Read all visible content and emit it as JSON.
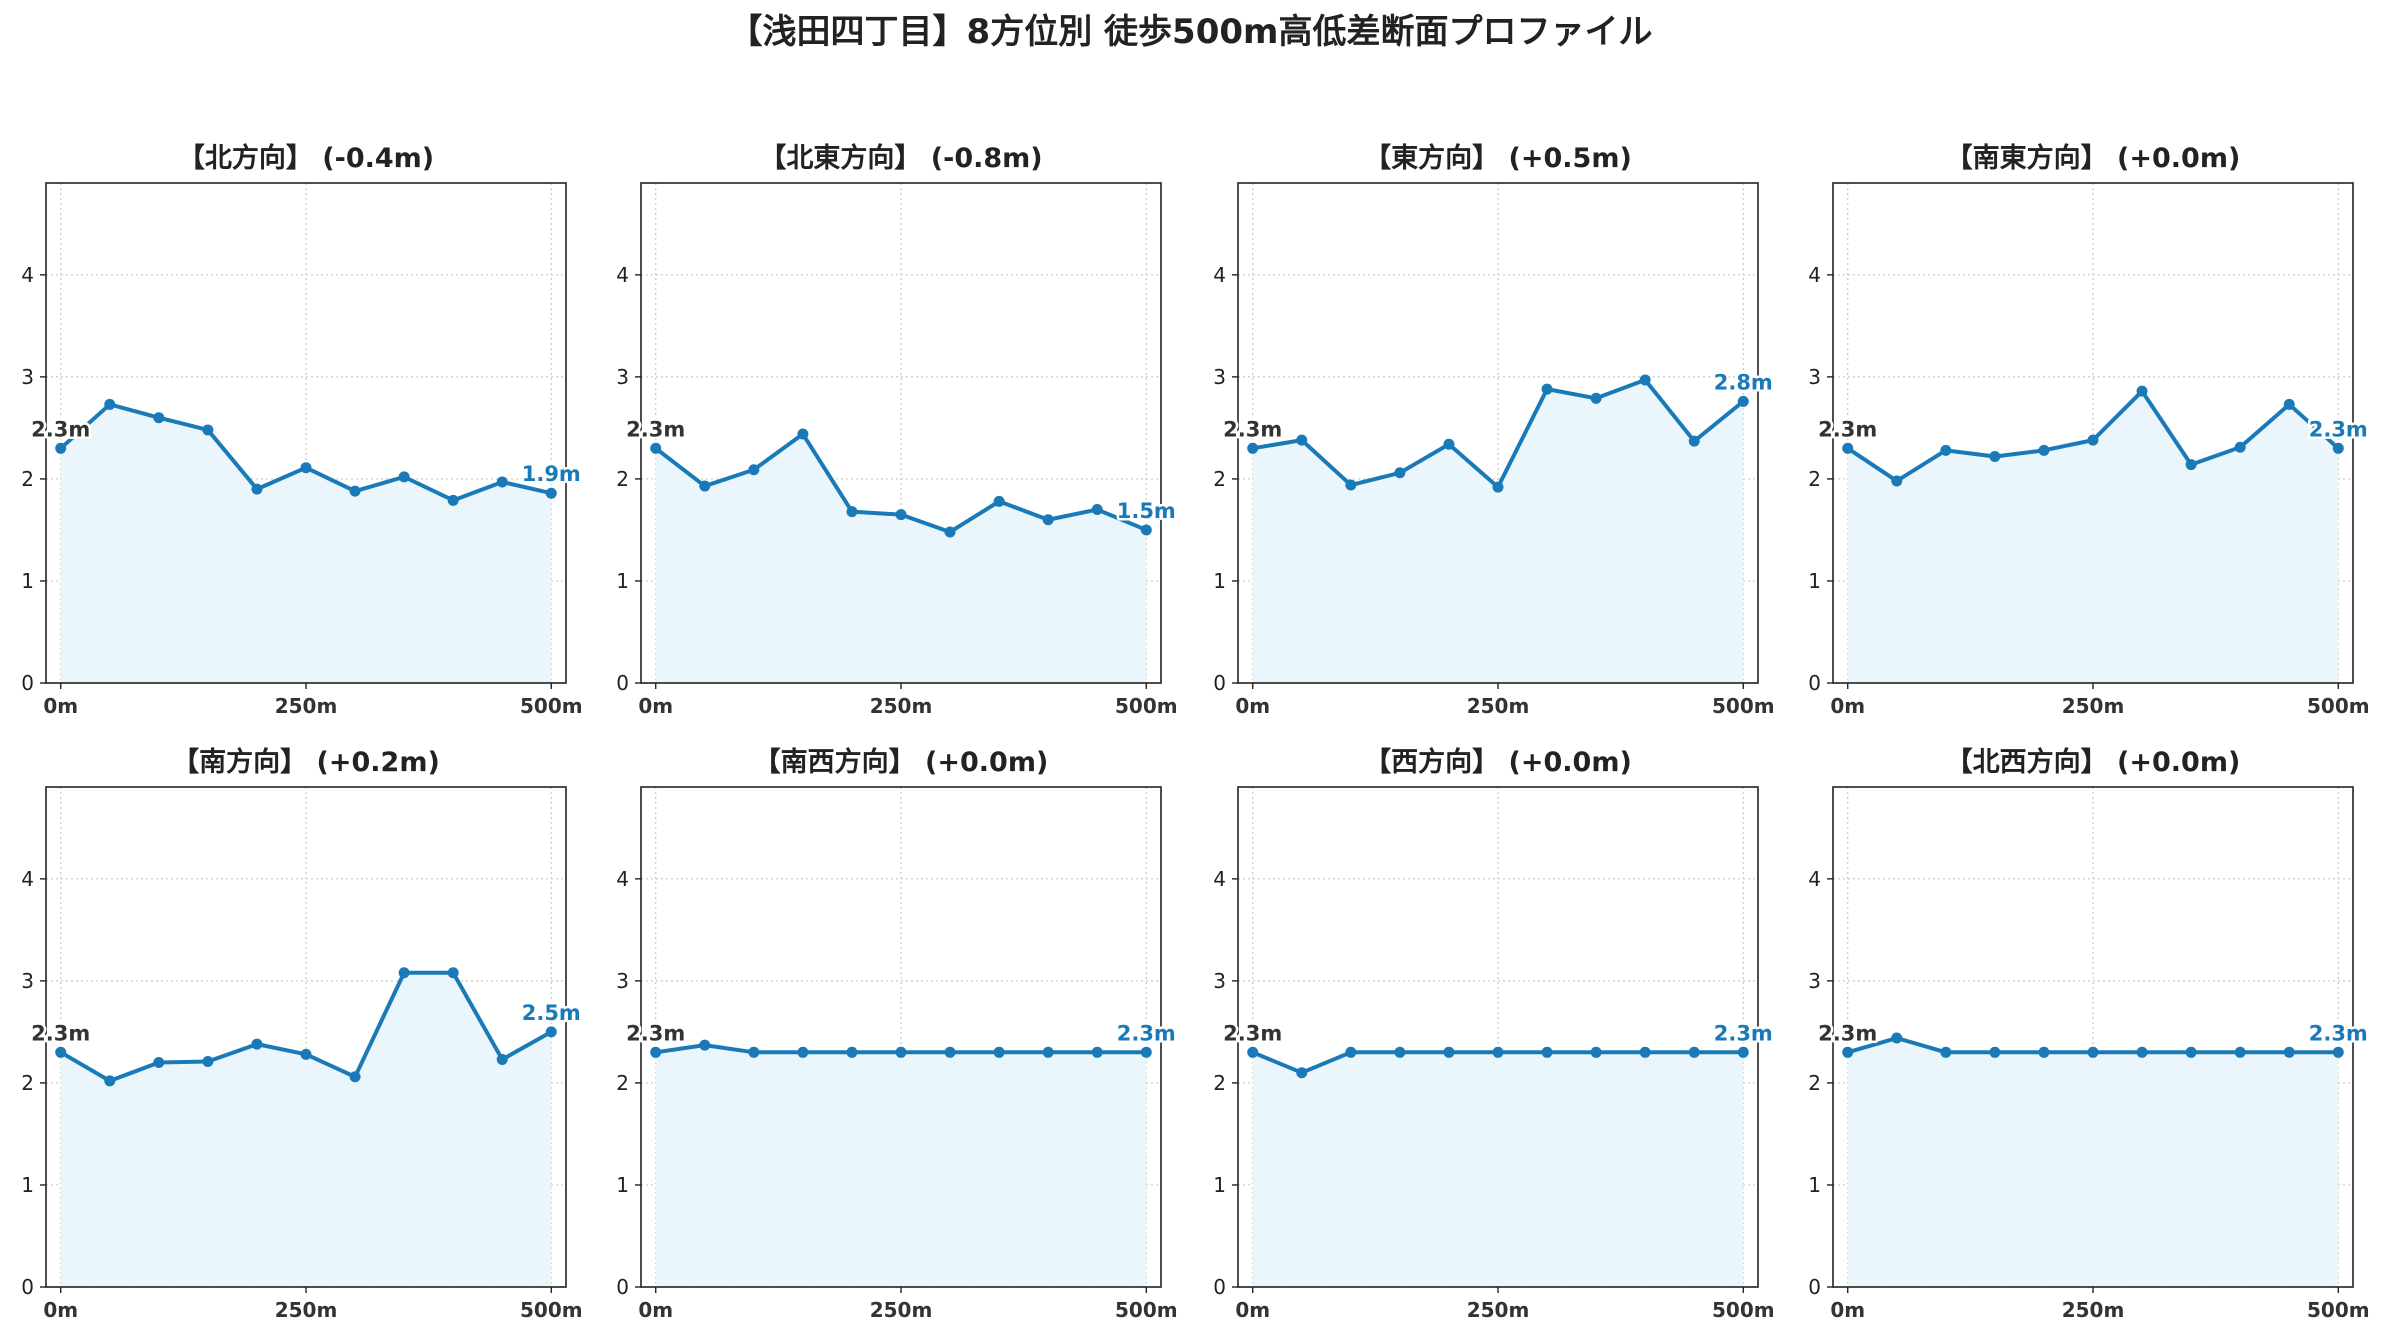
{
  "title": "【浅田四丁目】8方位別 徒歩500m高低差断面プロファイル",
  "colors": {
    "line": "#1a7ab8",
    "fill": "#eaf6fb",
    "start_label": "#333333",
    "end_label": "#1a7ab8",
    "grid": "#c8c8c8"
  },
  "chart_data": [
    {
      "type": "area",
      "title": "【北方向】 (-0.4m)",
      "x": [
        0,
        50,
        100,
        150,
        200,
        250,
        300,
        350,
        400,
        450,
        500
      ],
      "values": [
        2.3,
        2.73,
        2.6,
        2.48,
        1.9,
        2.11,
        1.88,
        2.02,
        1.79,
        1.97,
        1.86
      ],
      "start_label": "2.3m",
      "end_label": "1.9m",
      "xticks": [
        0,
        250,
        500
      ],
      "xtick_labels": [
        "0m",
        "250m",
        "500m"
      ],
      "yticks": [
        0,
        1,
        2,
        3,
        4
      ],
      "ylim": [
        0,
        4.9
      ],
      "xlim": [
        -15,
        515
      ],
      "grid": true
    },
    {
      "type": "area",
      "title": "【北東方向】 (-0.8m)",
      "x": [
        0,
        50,
        100,
        150,
        200,
        250,
        300,
        350,
        400,
        450,
        500
      ],
      "values": [
        2.3,
        1.93,
        2.09,
        2.44,
        1.68,
        1.65,
        1.48,
        1.78,
        1.6,
        1.7,
        1.5
      ],
      "start_label": "2.3m",
      "end_label": "1.5m",
      "xticks": [
        0,
        250,
        500
      ],
      "xtick_labels": [
        "0m",
        "250m",
        "500m"
      ],
      "yticks": [
        0,
        1,
        2,
        3,
        4
      ],
      "ylim": [
        0,
        4.9
      ],
      "xlim": [
        -15,
        515
      ],
      "grid": true
    },
    {
      "type": "area",
      "title": "【東方向】 (+0.5m)",
      "x": [
        0,
        50,
        100,
        150,
        200,
        250,
        300,
        350,
        400,
        450,
        500
      ],
      "values": [
        2.3,
        2.38,
        1.94,
        2.06,
        2.34,
        1.92,
        2.88,
        2.79,
        2.97,
        2.37,
        2.76
      ],
      "start_label": "2.3m",
      "end_label": "2.8m",
      "xticks": [
        0,
        250,
        500
      ],
      "xtick_labels": [
        "0m",
        "250m",
        "500m"
      ],
      "yticks": [
        0,
        1,
        2,
        3,
        4
      ],
      "ylim": [
        0,
        4.9
      ],
      "xlim": [
        -15,
        515
      ],
      "grid": true
    },
    {
      "type": "area",
      "title": "【南東方向】 (+0.0m)",
      "x": [
        0,
        50,
        100,
        150,
        200,
        250,
        300,
        350,
        400,
        450,
        500
      ],
      "values": [
        2.3,
        1.98,
        2.28,
        2.22,
        2.28,
        2.38,
        2.86,
        2.14,
        2.31,
        2.73,
        2.3
      ],
      "start_label": "2.3m",
      "end_label": "2.3m",
      "xticks": [
        0,
        250,
        500
      ],
      "xtick_labels": [
        "0m",
        "250m",
        "500m"
      ],
      "yticks": [
        0,
        1,
        2,
        3,
        4
      ],
      "ylim": [
        0,
        4.9
      ],
      "xlim": [
        -15,
        515
      ],
      "grid": true
    },
    {
      "type": "area",
      "title": "【南方向】 (+0.2m)",
      "x": [
        0,
        50,
        100,
        150,
        200,
        250,
        300,
        350,
        400,
        450,
        500
      ],
      "values": [
        2.3,
        2.02,
        2.2,
        2.21,
        2.38,
        2.28,
        2.06,
        3.08,
        3.08,
        2.23,
        2.5
      ],
      "start_label": "2.3m",
      "end_label": "2.5m",
      "xticks": [
        0,
        250,
        500
      ],
      "xtick_labels": [
        "0m",
        "250m",
        "500m"
      ],
      "yticks": [
        0,
        1,
        2,
        3,
        4
      ],
      "ylim": [
        0,
        4.9
      ],
      "xlim": [
        -15,
        515
      ],
      "grid": true
    },
    {
      "type": "area",
      "title": "【南西方向】 (+0.0m)",
      "x": [
        0,
        50,
        100,
        150,
        200,
        250,
        300,
        350,
        400,
        450,
        500
      ],
      "values": [
        2.3,
        2.37,
        2.3,
        2.3,
        2.3,
        2.3,
        2.3,
        2.3,
        2.3,
        2.3,
        2.3
      ],
      "start_label": "2.3m",
      "end_label": "2.3m",
      "xticks": [
        0,
        250,
        500
      ],
      "xtick_labels": [
        "0m",
        "250m",
        "500m"
      ],
      "yticks": [
        0,
        1,
        2,
        3,
        4
      ],
      "ylim": [
        0,
        4.9
      ],
      "xlim": [
        -15,
        515
      ],
      "grid": true
    },
    {
      "type": "area",
      "title": "【西方向】 (+0.0m)",
      "x": [
        0,
        50,
        100,
        150,
        200,
        250,
        300,
        350,
        400,
        450,
        500
      ],
      "values": [
        2.3,
        2.1,
        2.3,
        2.3,
        2.3,
        2.3,
        2.3,
        2.3,
        2.3,
        2.3,
        2.3
      ],
      "start_label": "2.3m",
      "end_label": "2.3m",
      "xticks": [
        0,
        250,
        500
      ],
      "xtick_labels": [
        "0m",
        "250m",
        "500m"
      ],
      "yticks": [
        0,
        1,
        2,
        3,
        4
      ],
      "ylim": [
        0,
        4.9
      ],
      "xlim": [
        -15,
        515
      ],
      "grid": true
    },
    {
      "type": "area",
      "title": "【北西方向】 (+0.0m)",
      "x": [
        0,
        50,
        100,
        150,
        200,
        250,
        300,
        350,
        400,
        450,
        500
      ],
      "values": [
        2.3,
        2.44,
        2.3,
        2.3,
        2.3,
        2.3,
        2.3,
        2.3,
        2.3,
        2.3,
        2.3
      ],
      "start_label": "2.3m",
      "end_label": "2.3m",
      "xticks": [
        0,
        250,
        500
      ],
      "xtick_labels": [
        "0m",
        "250m",
        "500m"
      ],
      "yticks": [
        0,
        1,
        2,
        3,
        4
      ],
      "ylim": [
        0,
        4.9
      ],
      "xlim": [
        -15,
        515
      ],
      "grid": true
    }
  ]
}
